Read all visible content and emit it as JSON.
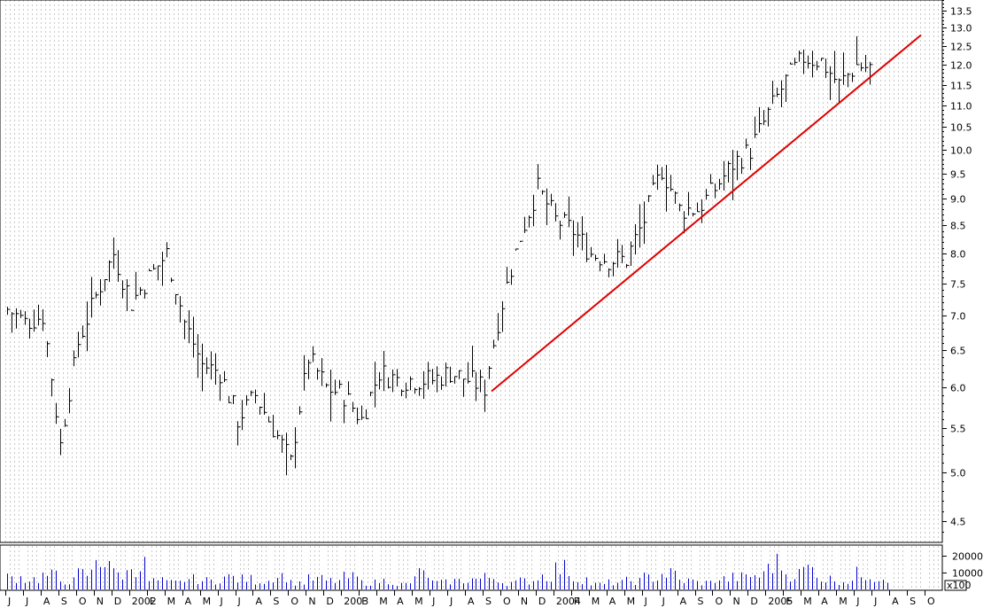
{
  "chart_data": {
    "type": "line",
    "series_style": "bar (high-low-close)",
    "title": "",
    "xlabel": "",
    "ylabel": "",
    "price_scale": "log",
    "ylim": [
      4.3,
      13.8
    ],
    "y_ticks": [
      "4.5",
      "5.0",
      "5.5",
      "6.0",
      "6.5",
      "7.0",
      "7.5",
      "8.0",
      "8.5",
      "9.0",
      "9.5",
      "10.0",
      "10.5",
      "11.0",
      "11.5",
      "12.0",
      "12.5",
      "13.0",
      "13.5"
    ],
    "x_range": [
      "2001-06",
      "2005-10"
    ],
    "x_tick_labels": [
      "J",
      "J",
      "A",
      "S",
      "O",
      "N",
      "D",
      "2002",
      "F",
      "M",
      "A",
      "M",
      "J",
      "J",
      "A",
      "S",
      "O",
      "N",
      "D",
      "2003",
      "F",
      "M",
      "A",
      "M",
      "J",
      "J",
      "A",
      "S",
      "O",
      "N",
      "D",
      "2004",
      "F",
      "M",
      "A",
      "M",
      "J",
      "J",
      "A",
      "S",
      "O",
      "N",
      "D",
      "2005",
      "F",
      "M",
      "A",
      "M",
      "J",
      "J",
      "A",
      "S",
      "O"
    ],
    "vertical_grid": "dotted",
    "price_series": [
      {
        "date": "2001-06",
        "close": 7.1
      },
      {
        "date": "2001-07",
        "close": 6.9
      },
      {
        "date": "2001-08",
        "close": 7.0
      },
      {
        "date": "2001-09",
        "close": 5.3
      },
      {
        "date": "2001-10",
        "close": 6.6
      },
      {
        "date": "2001-11",
        "close": 7.3
      },
      {
        "date": "2001-12",
        "close": 8.0
      },
      {
        "date": "2002-01",
        "close": 7.2
      },
      {
        "date": "2002-02",
        "close": 7.6
      },
      {
        "date": "2002-03",
        "close": 8.0
      },
      {
        "date": "2002-04",
        "close": 6.9
      },
      {
        "date": "2002-05",
        "close": 6.3
      },
      {
        "date": "2002-06",
        "close": 6.2
      },
      {
        "date": "2002-07",
        "close": 5.6
      },
      {
        "date": "2002-08",
        "close": 5.9
      },
      {
        "date": "2002-09",
        "close": 5.5
      },
      {
        "date": "2002-10",
        "close": 5.1
      },
      {
        "date": "2002-11",
        "close": 6.4
      },
      {
        "date": "2002-12",
        "close": 6.0
      },
      {
        "date": "2003-01",
        "close": 5.9
      },
      {
        "date": "2003-02",
        "close": 5.6
      },
      {
        "date": "2003-03",
        "close": 6.2
      },
      {
        "date": "2003-04",
        "close": 6.1
      },
      {
        "date": "2003-05",
        "close": 6.1
      },
      {
        "date": "2003-06",
        "close": 6.1
      },
      {
        "date": "2003-07",
        "close": 6.2
      },
      {
        "date": "2003-08",
        "close": 6.1
      },
      {
        "date": "2003-09",
        "close": 6.0
      },
      {
        "date": "2003-10",
        "close": 7.2
      },
      {
        "date": "2003-11",
        "close": 8.3
      },
      {
        "date": "2003-12",
        "close": 9.2
      },
      {
        "date": "2004-01",
        "close": 8.6
      },
      {
        "date": "2004-02",
        "close": 8.4
      },
      {
        "date": "2004-03",
        "close": 8.0
      },
      {
        "date": "2004-04",
        "close": 7.9
      },
      {
        "date": "2004-05",
        "close": 7.9
      },
      {
        "date": "2004-06",
        "close": 8.6
      },
      {
        "date": "2004-07",
        "close": 9.6
      },
      {
        "date": "2004-08",
        "close": 8.8
      },
      {
        "date": "2004-09",
        "close": 8.8
      },
      {
        "date": "2004-10",
        "close": 9.2
      },
      {
        "date": "2004-11",
        "close": 9.7
      },
      {
        "date": "2004-12",
        "close": 10.0
      },
      {
        "date": "2005-01",
        "close": 10.8
      },
      {
        "date": "2005-02",
        "close": 11.6
      },
      {
        "date": "2005-03",
        "close": 12.2
      },
      {
        "date": "2005-04",
        "close": 12.1
      },
      {
        "date": "2005-05",
        "close": 11.5
      },
      {
        "date": "2005-06",
        "close": 12.0
      },
      {
        "date": "2005-07",
        "close": 11.9
      }
    ],
    "trendline": {
      "color": "#e00000",
      "start": {
        "date": "2003-09",
        "value": 5.95
      },
      "end": {
        "date": "2005-10",
        "value": 12.8
      }
    },
    "volume_panel": {
      "y_ticks": [
        "10000",
        "20000"
      ],
      "scale_note": "x100",
      "values": [
        700,
        600,
        800,
        500,
        900,
        1800,
        900,
        1400,
        500,
        400,
        600,
        500,
        700,
        600,
        500,
        800,
        400,
        600,
        500,
        700,
        400,
        500,
        300,
        900,
        400,
        500,
        600,
        700,
        400,
        500,
        800,
        1200,
        600,
        300,
        400,
        500,
        700,
        900,
        500,
        400,
        600,
        700,
        800,
        1500,
        900,
        1200,
        600,
        500,
        900,
        700
      ]
    }
  }
}
